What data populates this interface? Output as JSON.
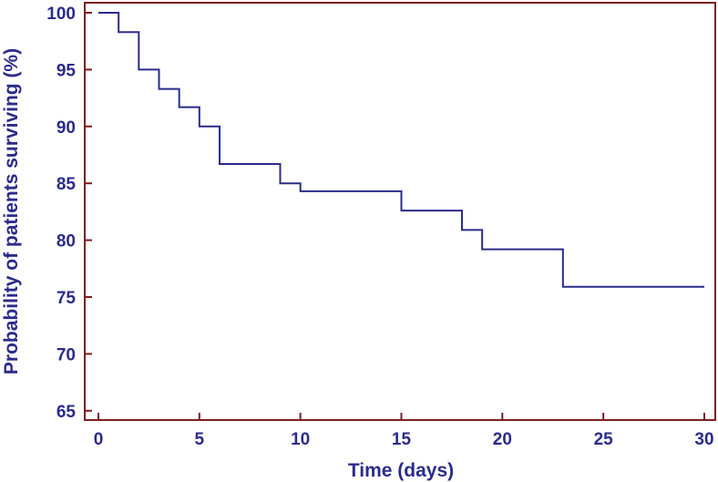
{
  "chart_data": {
    "type": "line",
    "title": "",
    "xlabel": "Time (days)",
    "ylabel": "Probability of patients surviving (%)",
    "xlim": [
      0,
      30
    ],
    "ylim": [
      64,
      100
    ],
    "xticks": [
      0,
      5,
      10,
      15,
      20,
      25,
      30
    ],
    "yticks": [
      65,
      70,
      75,
      80,
      85,
      90,
      95,
      100
    ],
    "grid": false,
    "legend": "none",
    "series": [
      {
        "step": "post",
        "x": [
          0,
          1,
          2,
          3,
          4,
          5,
          6,
          9,
          10,
          15,
          18,
          19,
          23,
          30
        ],
        "y": [
          100,
          98.3,
          95,
          93.3,
          91.7,
          90,
          86.7,
          85,
          84.3,
          82.6,
          80.9,
          79.2,
          75.9,
          75.9
        ]
      }
    ],
    "colors": {
      "line": "#2b2b8a",
      "frame": "#7a1f1f",
      "text": "#2b2b8a"
    }
  }
}
